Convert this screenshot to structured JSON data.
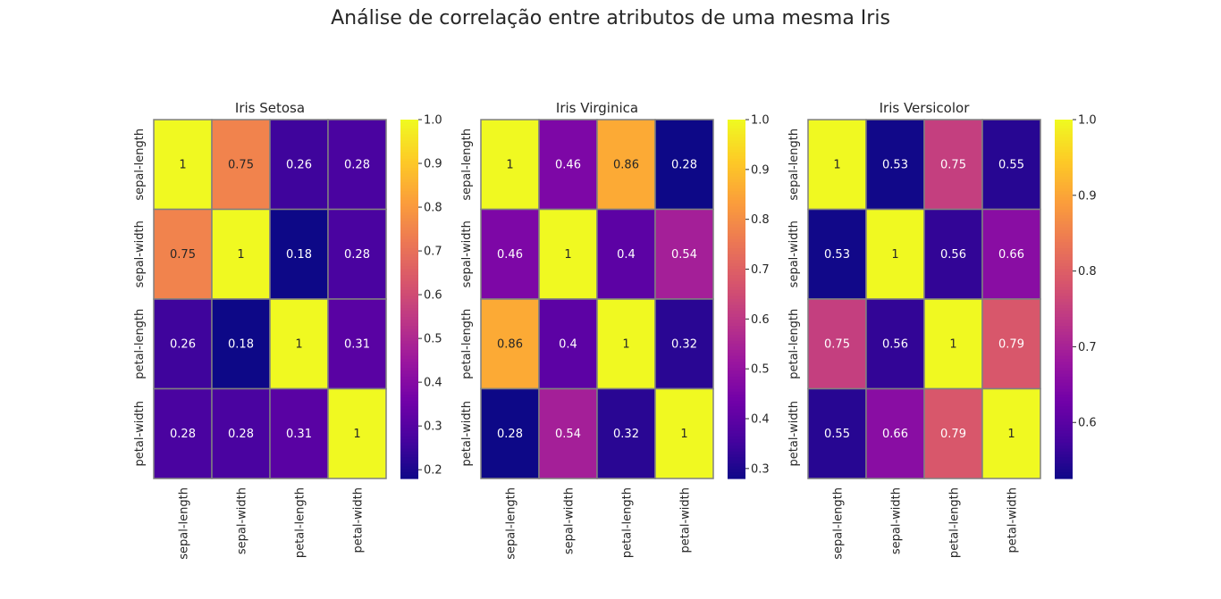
{
  "suptitle": "Análise de correlação entre atributos de uma mesma Iris",
  "colormap": {
    "name": "plasma",
    "stops": [
      "#0d0887",
      "#46039f",
      "#7201a8",
      "#9c179e",
      "#bd3786",
      "#d8576b",
      "#ed7953",
      "#fb9f3a",
      "#fdca26",
      "#f0f921"
    ]
  },
  "cell_border_color": "#808080",
  "chart_data": [
    {
      "type": "heatmap",
      "title": "Iris Setosa",
      "labels": [
        "sepal-length",
        "sepal-width",
        "petal-length",
        "petal-width"
      ],
      "values": [
        [
          1,
          0.75,
          0.26,
          0.28
        ],
        [
          0.75,
          1,
          0.18,
          0.28
        ],
        [
          0.26,
          0.18,
          1,
          0.31
        ],
        [
          0.28,
          0.28,
          0.31,
          1
        ]
      ],
      "annotations": [
        [
          "1",
          "0.75",
          "0.26",
          "0.28"
        ],
        [
          "0.75",
          "1",
          "0.18",
          "0.28"
        ],
        [
          "0.26",
          "0.18",
          "1",
          "0.31"
        ],
        [
          "0.28",
          "0.28",
          "0.31",
          "1"
        ]
      ],
      "vmin": 0.18,
      "vmax": 1.0,
      "colorbar_ticks": [
        "0.2",
        "0.3",
        "0.4",
        "0.5",
        "0.6",
        "0.7",
        "0.8",
        "0.9",
        "1.0"
      ]
    },
    {
      "type": "heatmap",
      "title": "Iris Virginica",
      "labels": [
        "sepal-length",
        "sepal-width",
        "petal-length",
        "petal-width"
      ],
      "values": [
        [
          1,
          0.46,
          0.86,
          0.28
        ],
        [
          0.46,
          1,
          0.4,
          0.54
        ],
        [
          0.86,
          0.4,
          1,
          0.32
        ],
        [
          0.28,
          0.54,
          0.32,
          1
        ]
      ],
      "annotations": [
        [
          "1",
          "0.46",
          "0.86",
          "0.28"
        ],
        [
          "0.46",
          "1",
          "0.4",
          "0.54"
        ],
        [
          "0.86",
          "0.4",
          "1",
          "0.32"
        ],
        [
          "0.28",
          "0.54",
          "0.32",
          "1"
        ]
      ],
      "vmin": 0.28,
      "vmax": 1.0,
      "colorbar_ticks": [
        "0.3",
        "0.4",
        "0.5",
        "0.6",
        "0.7",
        "0.8",
        "0.9",
        "1.0"
      ]
    },
    {
      "type": "heatmap",
      "title": "Iris Versicolor",
      "labels": [
        "sepal-length",
        "sepal-width",
        "petal-length",
        "petal-width"
      ],
      "values": [
        [
          1,
          0.53,
          0.75,
          0.55
        ],
        [
          0.53,
          1,
          0.56,
          0.66
        ],
        [
          0.75,
          0.56,
          1,
          0.79
        ],
        [
          0.55,
          0.66,
          0.79,
          1
        ]
      ],
      "annotations": [
        [
          "1",
          "0.53",
          "0.75",
          "0.55"
        ],
        [
          "0.53",
          "1",
          "0.56",
          "0.66"
        ],
        [
          "0.75",
          "0.56",
          "1",
          "0.79"
        ],
        [
          "0.55",
          "0.66",
          "0.79",
          "1"
        ]
      ],
      "vmin": 0.526,
      "vmax": 1.0,
      "colorbar_ticks": [
        "0.6",
        "0.7",
        "0.8",
        "0.9",
        "1.0"
      ]
    }
  ]
}
